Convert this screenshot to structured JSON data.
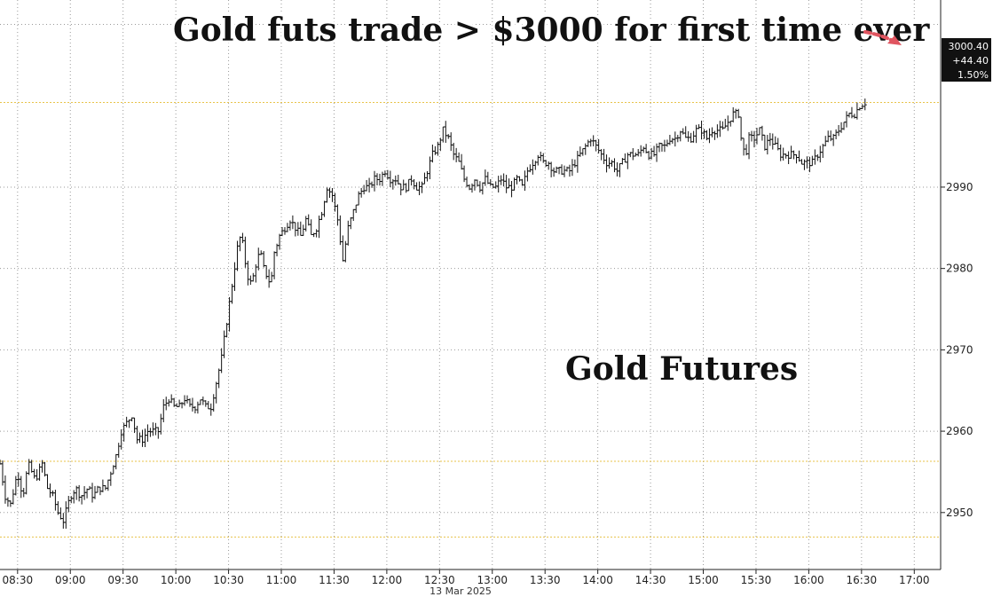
{
  "chart_data": {
    "type": "ohlc",
    "title": "Gold futs trade > $3000 for first time ever",
    "series_label": "Gold Futures",
    "date_label": "13 Mar 2025",
    "x_ticks": [
      "08:30",
      "09:00",
      "09:30",
      "10:00",
      "10:30",
      "11:00",
      "11:30",
      "12:00",
      "12:30",
      "13:00",
      "13:30",
      "14:00",
      "14:30",
      "15:00",
      "15:30",
      "16:00",
      "16:30",
      "17:00"
    ],
    "y_ticks": [
      2950,
      2960,
      2970,
      2980,
      2990
    ],
    "ylim": [
      2943,
      3013
    ],
    "xlim_minutes": [
      500,
      1035
    ],
    "grid": true,
    "last_price": {
      "value": "3000.40",
      "change": "+44.40",
      "pct": "1.50%"
    },
    "reference_lines": [
      {
        "value": 3000.4,
        "color": "#e8c34a"
      },
      {
        "value": 2956.3,
        "color": "#e8c34a"
      },
      {
        "value": 2947.0,
        "color": "#e8c34a"
      }
    ],
    "price_path": [
      [
        500,
        2956
      ],
      [
        503,
        2952
      ],
      [
        506,
        2951
      ],
      [
        510,
        2955
      ],
      [
        513,
        2952
      ],
      [
        516,
        2956
      ],
      [
        520,
        2954
      ],
      [
        524,
        2956
      ],
      [
        527,
        2953
      ],
      [
        530,
        2952
      ],
      [
        533,
        2950
      ],
      [
        536,
        2949
      ],
      [
        540,
        2952
      ],
      [
        543,
        2953
      ],
      [
        546,
        2952
      ],
      [
        550,
        2953
      ],
      [
        553,
        2952
      ],
      [
        556,
        2953
      ],
      [
        560,
        2953
      ],
      [
        563,
        2955
      ],
      [
        566,
        2957
      ],
      [
        569,
        2960
      ],
      [
        572,
        2961
      ],
      [
        575,
        2962
      ],
      [
        578,
        2959
      ],
      [
        581,
        2959
      ],
      [
        584,
        2960
      ],
      [
        587,
        2960
      ],
      [
        590,
        2960
      ],
      [
        593,
        2963
      ],
      [
        596,
        2964
      ],
      [
        599,
        2963
      ],
      [
        602,
        2963
      ],
      [
        605,
        2964
      ],
      [
        608,
        2963
      ],
      [
        611,
        2963
      ],
      [
        614,
        2964
      ],
      [
        617,
        2963
      ],
      [
        620,
        2963
      ],
      [
        622,
        2965
      ],
      [
        624,
        2967
      ],
      [
        626,
        2969
      ],
      [
        628,
        2972
      ],
      [
        630,
        2975
      ],
      [
        632,
        2978
      ],
      [
        634,
        2981
      ],
      [
        636,
        2984
      ],
      [
        638,
        2983
      ],
      [
        640,
        2980
      ],
      [
        642,
        2978
      ],
      [
        644,
        2979
      ],
      [
        646,
        2981
      ],
      [
        648,
        2982
      ],
      [
        650,
        2980
      ],
      [
        652,
        2979
      ],
      [
        654,
        2978
      ],
      [
        656,
        2982
      ],
      [
        659,
        2984
      ],
      [
        662,
        2985
      ],
      [
        665,
        2986
      ],
      [
        668,
        2985
      ],
      [
        671,
        2984
      ],
      [
        674,
        2986
      ],
      [
        677,
        2984
      ],
      [
        680,
        2985
      ],
      [
        683,
        2987
      ],
      [
        686,
        2990
      ],
      [
        689,
        2989
      ],
      [
        692,
        2986
      ],
      [
        695,
        2981
      ],
      [
        698,
        2985
      ],
      [
        701,
        2987
      ],
      [
        704,
        2989
      ],
      [
        707,
        2990
      ],
      [
        710,
        2990
      ],
      [
        713,
        2991
      ],
      [
        716,
        2991
      ],
      [
        719,
        2992
      ],
      [
        722,
        2991
      ],
      [
        725,
        2991
      ],
      [
        728,
        2990
      ],
      [
        731,
        2990
      ],
      [
        734,
        2991
      ],
      [
        737,
        2990
      ],
      [
        740,
        2990
      ],
      [
        743,
        2992
      ],
      [
        746,
        2994
      ],
      [
        749,
        2995
      ],
      [
        752,
        2997
      ],
      [
        755,
        2996
      ],
      [
        758,
        2994
      ],
      [
        761,
        2993
      ],
      [
        764,
        2991
      ],
      [
        767,
        2990
      ],
      [
        770,
        2991
      ],
      [
        773,
        2990
      ],
      [
        776,
        2991
      ],
      [
        779,
        2990
      ],
      [
        782,
        2990
      ],
      [
        785,
        2991
      ],
      [
        788,
        2990
      ],
      [
        791,
        2990
      ],
      [
        794,
        2991
      ],
      [
        797,
        2990
      ],
      [
        800,
        2992
      ],
      [
        803,
        2993
      ],
      [
        806,
        2994
      ],
      [
        809,
        2993
      ],
      [
        812,
        2993
      ],
      [
        815,
        2992
      ],
      [
        818,
        2992
      ],
      [
        821,
        2992
      ],
      [
        824,
        2992
      ],
      [
        827,
        2993
      ],
      [
        830,
        2994
      ],
      [
        833,
        2995
      ],
      [
        836,
        2996
      ],
      [
        839,
        2995
      ],
      [
        842,
        2994
      ],
      [
        845,
        2993
      ],
      [
        848,
        2993
      ],
      [
        851,
        2992
      ],
      [
        854,
        2993
      ],
      [
        857,
        2994
      ],
      [
        860,
        2994
      ],
      [
        863,
        2994
      ],
      [
        866,
        2995
      ],
      [
        869,
        2994
      ],
      [
        872,
        2994
      ],
      [
        875,
        2995
      ],
      [
        878,
        2995
      ],
      [
        881,
        2996
      ],
      [
        884,
        2996
      ],
      [
        887,
        2997
      ],
      [
        890,
        2996
      ],
      [
        893,
        2996
      ],
      [
        896,
        2997
      ],
      [
        899,
        2997
      ],
      [
        902,
        2996
      ],
      [
        905,
        2997
      ],
      [
        908,
        2997
      ],
      [
        911,
        2997
      ],
      [
        914,
        2998
      ],
      [
        917,
        2999
      ],
      [
        920,
        2999
      ],
      [
        922,
        2995
      ],
      [
        924,
        2994
      ],
      [
        926,
        2996
      ],
      [
        929,
        2996
      ],
      [
        932,
        2997
      ],
      [
        935,
        2995
      ],
      [
        938,
        2996
      ],
      [
        941,
        2995
      ],
      [
        944,
        2994
      ],
      [
        947,
        2994
      ],
      [
        950,
        2994
      ],
      [
        953,
        2994
      ],
      [
        956,
        2993
      ],
      [
        959,
        2993
      ],
      [
        962,
        2993
      ],
      [
        965,
        2994
      ],
      [
        968,
        2995
      ],
      [
        971,
        2996
      ],
      [
        974,
        2996
      ],
      [
        977,
        2997
      ],
      [
        980,
        2998
      ],
      [
        983,
        2999
      ],
      [
        986,
        2999
      ],
      [
        989,
        3000
      ],
      [
        992,
        3000.4
      ]
    ]
  }
}
